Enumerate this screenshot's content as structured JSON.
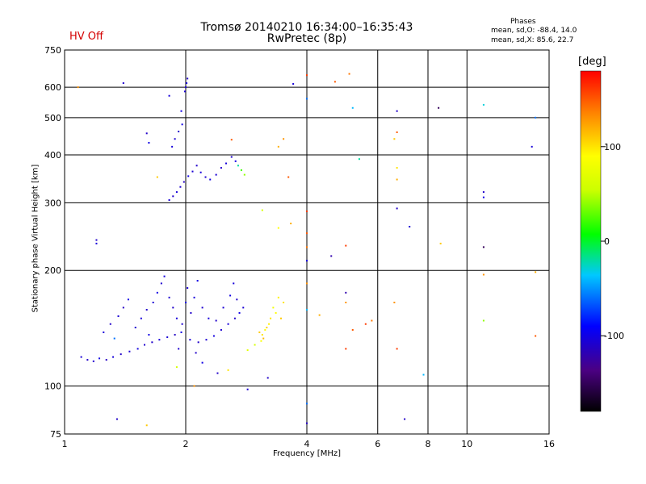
{
  "header": {
    "title_line1": "Tromsø 20140210 16:34:00–16:35:43",
    "title_line2": "RwPretec (8p)",
    "status": "HV Off",
    "status_color": "#d40000",
    "phases_title": "Phases",
    "phases_o": "mean, sd,O: -88.4, 14.0",
    "phases_x": "mean, sd,X:  85.6, 22.7"
  },
  "colorbar": {
    "unit": "[deg]",
    "range": [
      -180,
      180
    ],
    "ticks": [
      {
        "value": 100,
        "label": "100"
      },
      {
        "value": 0,
        "label": "0"
      },
      {
        "value": -100,
        "label": "-100"
      }
    ]
  },
  "chart_data": {
    "type": "scatter",
    "title": "Tromsø 20140210 16:34:00–16:35:43",
    "subtitle": "RwPretec (8p)",
    "xlabel": "Frequency [MHz]",
    "ylabel": "Stationary phase Virtual Height [km]",
    "x_scale": "log",
    "y_scale": "log",
    "xlim": [
      1,
      16
    ],
    "ylim": [
      75,
      750
    ],
    "x_ticks": [
      {
        "value": 1,
        "label": "1"
      },
      {
        "value": 2,
        "label": "2"
      },
      {
        "value": 4,
        "label": "4"
      },
      {
        "value": 6,
        "label": "6"
      },
      {
        "value": 8,
        "label": "8"
      },
      {
        "value": 10,
        "label": "10"
      },
      {
        "value": 16,
        "label": "16"
      }
    ],
    "y_ticks": [
      {
        "value": 75,
        "label": "75"
      },
      {
        "value": 100,
        "label": "100"
      },
      {
        "value": 200,
        "label": "200"
      },
      {
        "value": 300,
        "label": "300"
      },
      {
        "value": 400,
        "label": "400"
      },
      {
        "value": 500,
        "label": "500"
      },
      {
        "value": 600,
        "label": "600"
      },
      {
        "value": 750,
        "label": "750"
      }
    ],
    "grid": true,
    "color_value": "phase_deg",
    "points": [
      [
        1.1,
        119,
        -105
      ],
      [
        1.14,
        117,
        -110
      ],
      [
        1.18,
        116,
        -108
      ],
      [
        1.22,
        118,
        -100
      ],
      [
        1.27,
        117,
        -112
      ],
      [
        1.32,
        119,
        -104
      ],
      [
        1.38,
        121,
        -110
      ],
      [
        1.45,
        123,
        -106
      ],
      [
        1.52,
        125,
        -102
      ],
      [
        1.58,
        128,
        -108
      ],
      [
        1.65,
        130,
        -110
      ],
      [
        1.72,
        132,
        -104
      ],
      [
        1.8,
        134,
        -106
      ],
      [
        1.88,
        136,
        -112
      ],
      [
        1.95,
        138,
        -100
      ],
      [
        2.05,
        132,
        -104
      ],
      [
        2.15,
        130,
        -110
      ],
      [
        2.25,
        132,
        -106
      ],
      [
        2.35,
        135,
        -102
      ],
      [
        2.45,
        140,
        -108
      ],
      [
        2.55,
        145,
        -104
      ],
      [
        2.65,
        150,
        -110
      ],
      [
        2.72,
        155,
        -100
      ],
      [
        2.78,
        160,
        -106
      ],
      [
        1.25,
        138,
        -104
      ],
      [
        1.3,
        145,
        -110
      ],
      [
        1.36,
        152,
        -106
      ],
      [
        1.4,
        160,
        -112
      ],
      [
        1.44,
        168,
        -100
      ],
      [
        1.5,
        142,
        -108
      ],
      [
        1.55,
        150,
        -104
      ],
      [
        1.6,
        158,
        -110
      ],
      [
        1.66,
        165,
        -106
      ],
      [
        1.7,
        175,
        -100
      ],
      [
        1.74,
        185,
        -108
      ],
      [
        1.77,
        193,
        -102
      ],
      [
        1.82,
        170,
        -106
      ],
      [
        1.86,
        160,
        -110
      ],
      [
        1.9,
        150,
        -104
      ],
      [
        1.96,
        145,
        -108
      ],
      [
        2.0,
        165,
        -100
      ],
      [
        2.02,
        180,
        -106
      ],
      [
        2.06,
        155,
        -110
      ],
      [
        2.1,
        170,
        -104
      ],
      [
        2.14,
        188,
        -100
      ],
      [
        2.2,
        160,
        -108
      ],
      [
        2.28,
        150,
        -104
      ],
      [
        2.38,
        148,
        -110
      ],
      [
        2.48,
        160,
        -106
      ],
      [
        2.58,
        172,
        -100
      ],
      [
        2.63,
        185,
        -104
      ],
      [
        2.68,
        168,
        -110
      ],
      [
        1.33,
        133,
        -60
      ],
      [
        1.62,
        136,
        -100
      ],
      [
        1.92,
        125,
        -108
      ],
      [
        2.12,
        122,
        -110
      ],
      [
        3.05,
        138,
        110
      ],
      [
        3.1,
        136,
        100
      ],
      [
        3.15,
        140,
        90
      ],
      [
        3.18,
        142,
        105
      ],
      [
        3.22,
        145,
        95
      ],
      [
        3.12,
        133,
        115
      ],
      [
        3.25,
        150,
        100
      ],
      [
        3.08,
        131,
        85
      ],
      [
        3.3,
        160,
        80
      ],
      [
        3.4,
        170,
        95
      ],
      [
        3.5,
        165,
        100
      ],
      [
        3.45,
        150,
        110
      ],
      [
        2.97,
        128,
        60
      ],
      [
        2.85,
        124,
        70
      ],
      [
        3.35,
        155,
        90
      ],
      [
        1.82,
        305,
        -105
      ],
      [
        1.86,
        312,
        -110
      ],
      [
        1.9,
        320,
        -104
      ],
      [
        1.94,
        330,
        -108
      ],
      [
        1.98,
        340,
        -112
      ],
      [
        2.03,
        352,
        -100
      ],
      [
        2.08,
        362,
        -106
      ],
      [
        2.13,
        375,
        -110
      ],
      [
        2.18,
        360,
        -104
      ],
      [
        2.24,
        350,
        -108
      ],
      [
        2.3,
        345,
        -100
      ],
      [
        2.38,
        355,
        -106
      ],
      [
        2.45,
        370,
        -110
      ],
      [
        2.52,
        380,
        -104
      ],
      [
        2.6,
        395,
        -108
      ],
      [
        2.66,
        385,
        -100
      ],
      [
        1.85,
        420,
        -104
      ],
      [
        1.88,
        440,
        -106
      ],
      [
        1.92,
        460,
        -110
      ],
      [
        1.96,
        480,
        -100
      ],
      [
        2.0,
        600,
        -108
      ],
      [
        2.01,
        615,
        -104
      ],
      [
        2.02,
        632,
        -110
      ],
      [
        1.99,
        585,
        -106
      ],
      [
        1.95,
        520,
        -100
      ],
      [
        2.7,
        375,
        -20
      ],
      [
        2.75,
        365,
        20
      ],
      [
        2.8,
        355,
        40
      ],
      [
        1.4,
        615,
        -108
      ],
      [
        1.82,
        570,
        -104
      ],
      [
        1.6,
        455,
        -110
      ],
      [
        1.62,
        430,
        -100
      ],
      [
        1.2,
        240,
        -110
      ],
      [
        1.2,
        235,
        -104
      ],
      [
        4.0,
        645,
        160
      ],
      [
        4.7,
        620,
        150
      ],
      [
        5.1,
        650,
        140
      ],
      [
        5.2,
        530,
        -40
      ],
      [
        5.4,
        390,
        -20
      ],
      [
        6.7,
        520,
        -110
      ],
      [
        8.5,
        530,
        -150
      ],
      [
        11.0,
        540,
        -30
      ],
      [
        11.0,
        320,
        -110
      ],
      [
        11.0,
        310,
        -100
      ],
      [
        11.0,
        230,
        -150
      ],
      [
        11.0,
        195,
        130
      ],
      [
        11.0,
        148,
        40
      ],
      [
        14.5,
        420,
        -105
      ],
      [
        14.8,
        500,
        -60
      ],
      [
        14.8,
        198,
        120
      ],
      [
        14.8,
        135,
        150
      ],
      [
        6.6,
        440,
        110
      ],
      [
        6.7,
        370,
        100
      ],
      [
        6.7,
        345,
        120
      ],
      [
        6.7,
        290,
        -110
      ],
      [
        7.2,
        260,
        -106
      ],
      [
        8.6,
        235,
        110
      ],
      [
        6.7,
        458,
        150
      ],
      [
        4.0,
        285,
        160
      ],
      [
        4.0,
        250,
        150
      ],
      [
        4.0,
        230,
        140
      ],
      [
        4.0,
        212,
        -100
      ],
      [
        4.0,
        185,
        130
      ],
      [
        4.0,
        158,
        -40
      ],
      [
        4.0,
        90,
        -60
      ],
      [
        4.0,
        80,
        -110
      ],
      [
        4.6,
        218,
        -120
      ],
      [
        5.0,
        232,
        160
      ],
      [
        5.0,
        175,
        -120
      ],
      [
        5.0,
        165,
        130
      ],
      [
        4.3,
        153,
        120
      ],
      [
        4.0,
        560,
        -60
      ],
      [
        3.7,
        612,
        -104
      ],
      [
        3.4,
        420,
        120
      ],
      [
        3.5,
        440,
        130
      ],
      [
        3.6,
        350,
        150
      ],
      [
        3.65,
        265,
        120
      ],
      [
        3.4,
        258,
        90
      ],
      [
        3.1,
        287,
        60
      ],
      [
        6.6,
        165,
        130
      ],
      [
        6.7,
        125,
        160
      ],
      [
        7.8,
        107,
        -40
      ],
      [
        7.0,
        82,
        -110
      ],
      [
        5.2,
        140,
        150
      ],
      [
        5.6,
        145,
        160
      ],
      [
        5.8,
        148,
        140
      ],
      [
        5.0,
        125,
        160
      ],
      [
        2.1,
        100,
        130
      ],
      [
        2.2,
        115,
        -100
      ],
      [
        2.4,
        108,
        -110
      ],
      [
        2.55,
        110,
        100
      ],
      [
        2.85,
        98,
        -106
      ],
      [
        3.2,
        105,
        -110
      ],
      [
        1.35,
        82,
        -110
      ],
      [
        1.6,
        79,
        110
      ],
      [
        1.08,
        600,
        130
      ],
      [
        1.7,
        350,
        110
      ],
      [
        2.6,
        438,
        150
      ],
      [
        1.9,
        112,
        60
      ]
    ]
  }
}
